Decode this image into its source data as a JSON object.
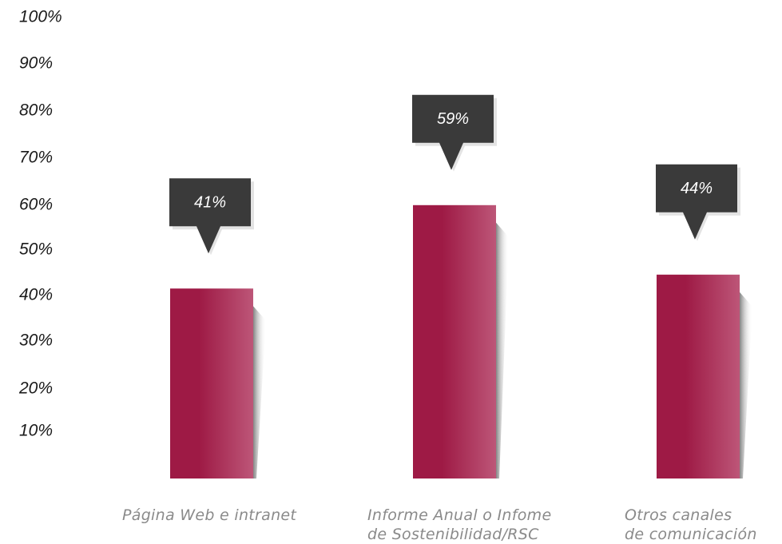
{
  "chart_data": {
    "type": "bar",
    "categories": [
      [
        "Página Web e intranet"
      ],
      [
        "Informe Anual o Infome",
        "de Sostenibilidad/RSC"
      ],
      [
        "Otros canales",
        "de comunicación"
      ]
    ],
    "values": [
      41,
      59,
      44
    ],
    "data_labels": [
      "41%",
      "59%",
      "44%"
    ],
    "y_ticks": [
      "100%",
      "90%",
      "80%",
      "70%",
      "60%",
      "50%",
      "40%",
      "30%",
      "20%",
      "10%"
    ],
    "ylim": [
      0,
      100
    ],
    "grid": false,
    "legend": "none",
    "colors": {
      "bar_dark": "#9e1a45",
      "bar_light": "#bd5678",
      "callout": "#3a3a3a",
      "callout_text": "#ffffff",
      "axis_text": "#1a1a1a",
      "category_text": "#8a8a8a"
    }
  }
}
